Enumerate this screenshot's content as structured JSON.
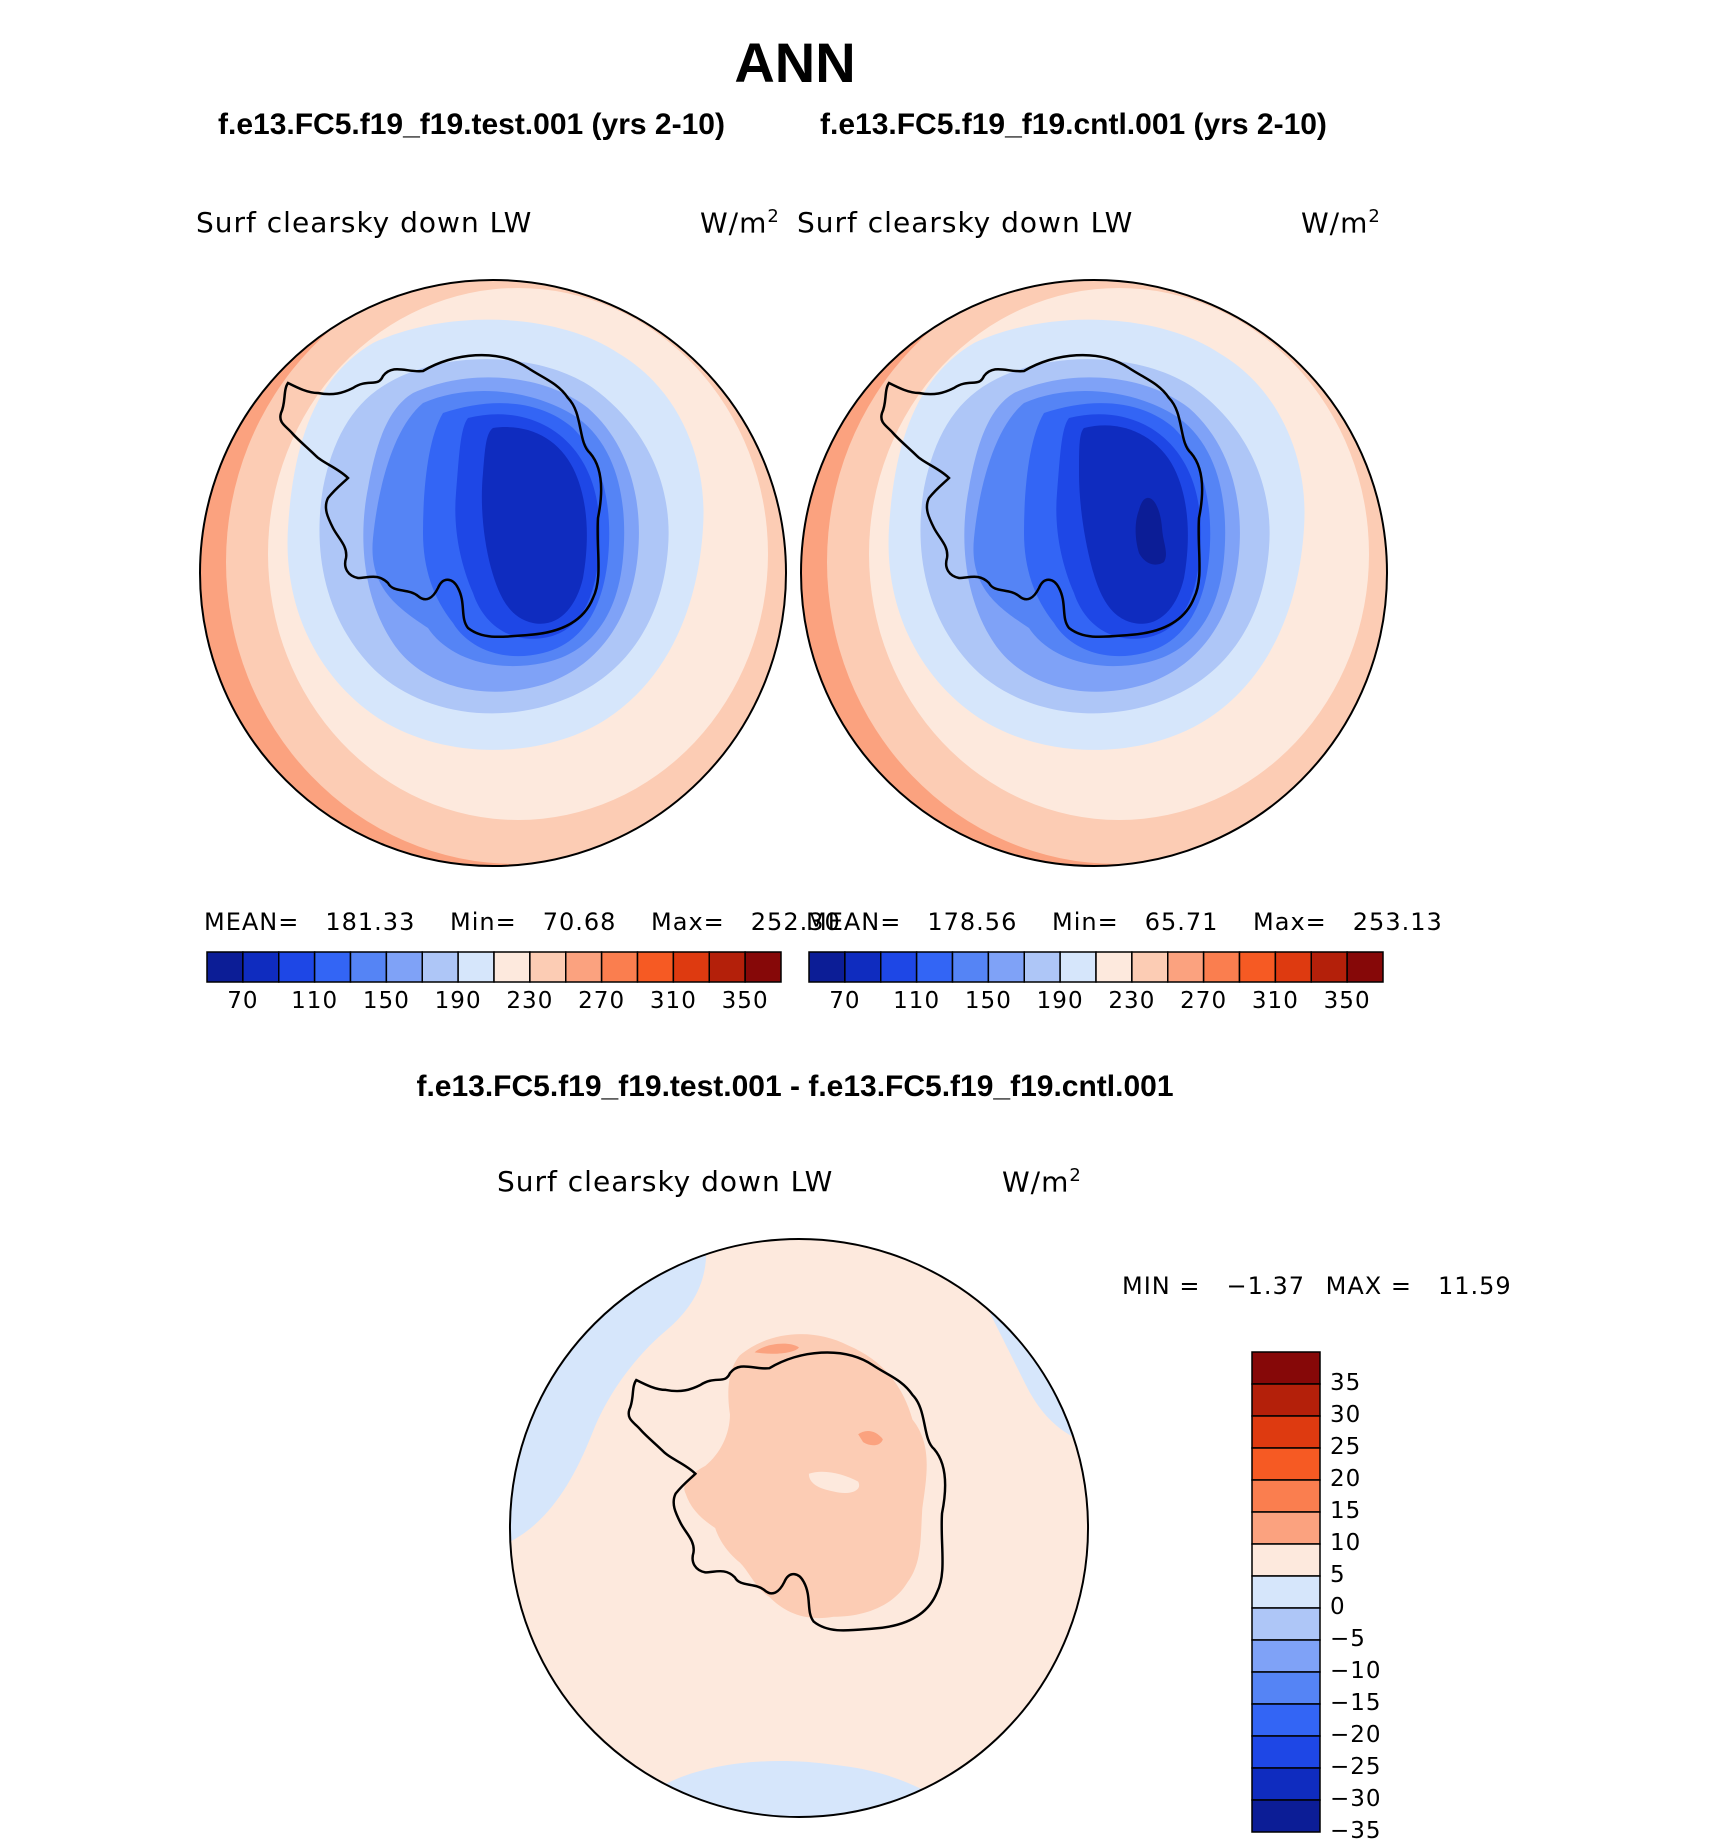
{
  "main_title": "ANN",
  "panels": [
    {
      "case_title": "f.e13.FC5.f19_f19.test.001 (yrs 2-10)",
      "variable": "Surf clearsky down LW",
      "units_base": "W/m",
      "units_exp": "2",
      "stats": {
        "mean_label": "MEAN=",
        "mean": "181.33",
        "min_label": "Min=",
        "min": "70.68",
        "max_label": "Max=",
        "max": "252.30"
      }
    },
    {
      "case_title": "f.e13.FC5.f19_f19.cntl.001 (yrs 2-10)",
      "variable": "Surf clearsky down LW",
      "units_base": "W/m",
      "units_exp": "2",
      "stats": {
        "mean_label": "MEAN=",
        "mean": "178.56",
        "min_label": "Min=",
        "min": "65.71",
        "max_label": "Max=",
        "max": "253.13"
      }
    }
  ],
  "diff_panel": {
    "title": "f.e13.FC5.f19_f19.test.001 - f.e13.FC5.f19_f19.cntl.001",
    "variable": "Surf clearsky down LW",
    "units_base": "W/m",
    "units_exp": "2",
    "min_label": "MIN =",
    "min": "−1.37",
    "max_label": "MAX =",
    "max": "11.59"
  },
  "colorbar_main": {
    "colors": [
      "#0c1d96",
      "#0f2cbf",
      "#1e47e6",
      "#3365f5",
      "#5584f5",
      "#7fa2f7",
      "#aec6f7",
      "#d6e6fb",
      "#fde9dd",
      "#fcccb4",
      "#fba27f",
      "#fa7e4f",
      "#f65a23",
      "#de3a10",
      "#b4200a",
      "#860808"
    ],
    "tick_labels": [
      "70",
      "110",
      "150",
      "190",
      "230",
      "270",
      "310",
      "350"
    ]
  },
  "colorbar_diff": {
    "colors": [
      "#860808",
      "#b4200a",
      "#de3a10",
      "#f65a23",
      "#fa7e4f",
      "#fba27f",
      "#fde9dd",
      "#d6e6fb",
      "#aec6f7",
      "#7fa2f7",
      "#5584f5",
      "#3365f5",
      "#1e47e6",
      "#0f2cbf",
      "#0c1d96"
    ],
    "tick_labels": [
      "35",
      "30",
      "25",
      "20",
      "15",
      "10",
      "5",
      "0",
      "−5",
      "−10",
      "−15",
      "−20",
      "−25",
      "−30",
      "−35"
    ]
  },
  "map_data": {
    "projection": "south-polar stereographic",
    "region": "Antarctica",
    "fields": [
      {
        "panel": "test",
        "colors_outer_to_inner": [
          "#fba27f",
          "#fcccb4",
          "#fde9dd",
          "#d6e6fb",
          "#aec6f7",
          "#7fa2f7",
          "#5584f5",
          "#3365f5",
          "#1e47e6",
          "#0f2cbf"
        ]
      },
      {
        "panel": "cntl",
        "colors_outer_to_inner": [
          "#fba27f",
          "#fcccb4",
          "#fde9dd",
          "#d6e6fb",
          "#aec6f7",
          "#7fa2f7",
          "#5584f5",
          "#3365f5",
          "#1e47e6",
          "#0f2cbf",
          "#0c1d96"
        ]
      },
      {
        "panel": "diff",
        "colors": [
          "#d6e6fb",
          "#fde9dd",
          "#fcccb4",
          "#fba27f"
        ]
      }
    ]
  }
}
